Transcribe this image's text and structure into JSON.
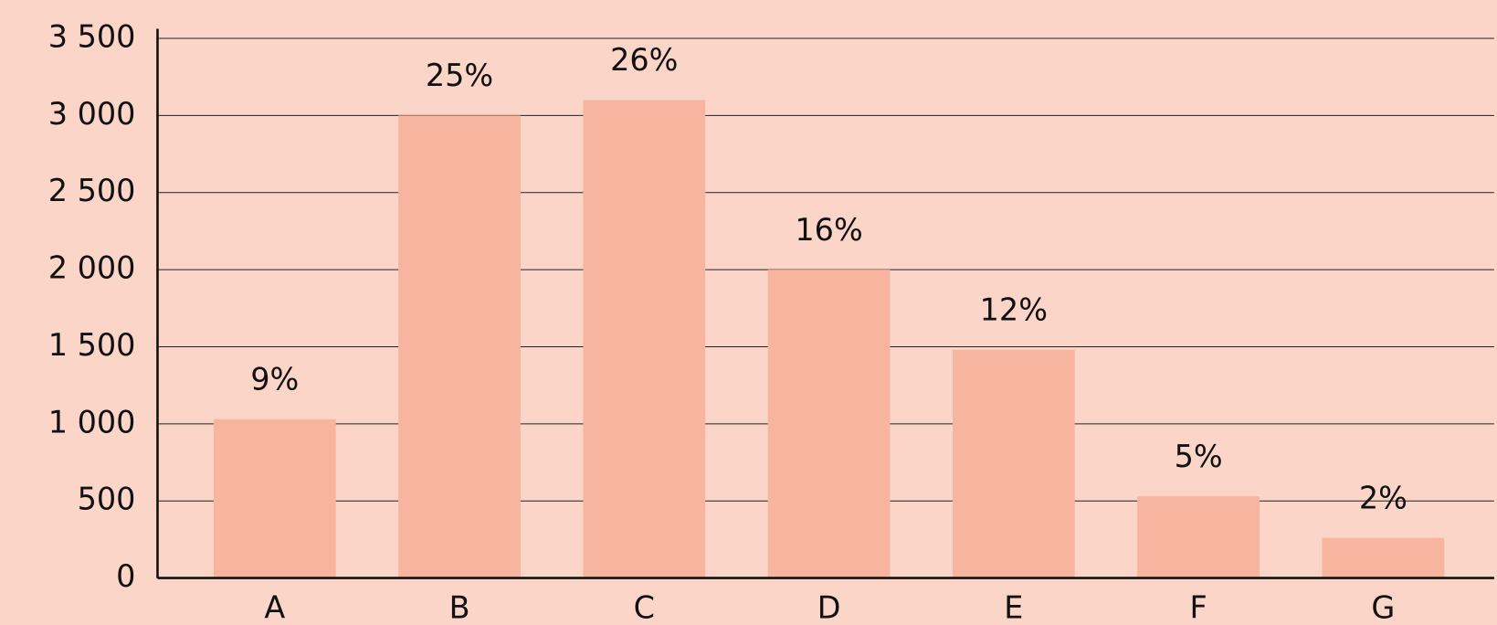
{
  "chart_data": {
    "type": "bar",
    "categories": [
      "A",
      "B",
      "C",
      "D",
      "E",
      "F",
      "G"
    ],
    "values": [
      1030,
      3000,
      3100,
      2000,
      1480,
      530,
      260
    ],
    "annotations": [
      "9%",
      "25%",
      "26%",
      "16%",
      "12%",
      "5%",
      "2%"
    ],
    "color": "#f7b5a0",
    "ylim": [
      0,
      3500
    ],
    "yticks": [
      0,
      500,
      {
        "value": 1000,
        "label": "1 000"
      },
      {
        "value": 1500,
        "label": "1 500"
      },
      {
        "value": 2000,
        "label": "2 000"
      },
      {
        "value": 2500,
        "label": "2 500"
      },
      {
        "value": 3000,
        "label": "3 000"
      },
      {
        "value": 3500,
        "label": "3 500"
      }
    ],
    "grid": true
  }
}
